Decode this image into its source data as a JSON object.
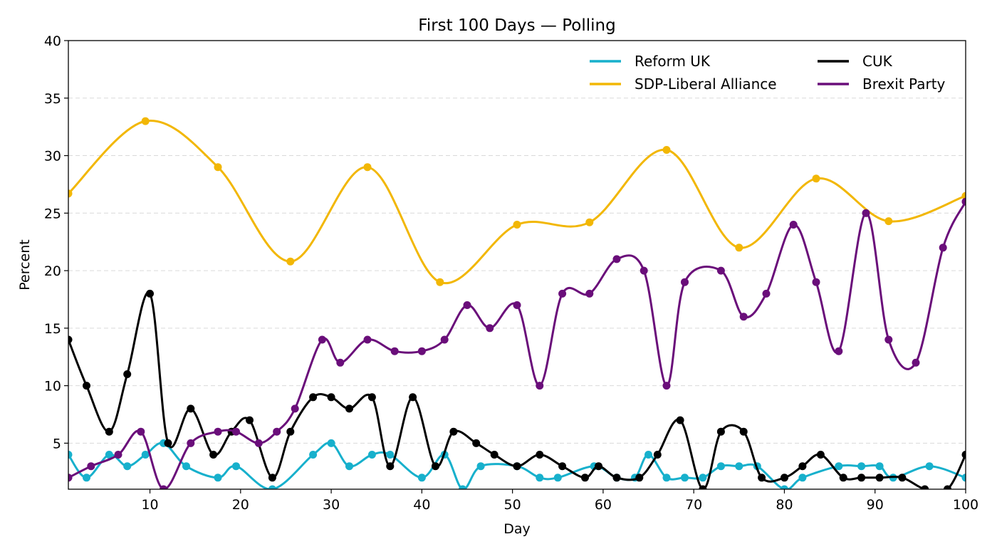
{
  "chart_data": {
    "type": "line",
    "title": "First 100 Days — Polling",
    "xlabel": "Day",
    "ylabel": "Percent",
    "xlim": [
      1,
      100
    ],
    "ylim": [
      1,
      40
    ],
    "xticks": [
      10,
      20,
      30,
      40,
      50,
      60,
      70,
      80,
      90,
      100
    ],
    "yticks": [
      5,
      10,
      15,
      20,
      25,
      30,
      35,
      40
    ],
    "grid": "y-dashed",
    "legend": {
      "placement": "top-right",
      "columns": 2
    },
    "series": [
      {
        "name": "Reform UK",
        "color": "#17b0cc",
        "x": [
          1,
          3,
          5.5,
          7.5,
          9.5,
          11.5,
          14,
          17.5,
          19.5,
          23.5,
          28,
          30,
          32,
          34.5,
          36.5,
          40,
          42.5,
          44.5,
          46.5,
          50.5,
          53,
          55,
          59,
          61.5,
          63.5,
          65,
          67,
          69,
          71,
          73,
          75,
          77,
          80,
          82,
          86,
          88.5,
          90.5,
          92,
          96,
          100
        ],
        "y": [
          4,
          2,
          4,
          3,
          4,
          5,
          3,
          2,
          3,
          1,
          4,
          5,
          3,
          4,
          4,
          2,
          4,
          1,
          3,
          3,
          2,
          2,
          3,
          2,
          2,
          4,
          2,
          2,
          2,
          3,
          3,
          3,
          1,
          2,
          3,
          3,
          3,
          2,
          3,
          2
        ]
      },
      {
        "name": "SDP-Liberal Alliance",
        "color": "#f2b705",
        "x": [
          1,
          9.5,
          17.5,
          25.5,
          34,
          42,
          50.5,
          58.5,
          67,
          75,
          83.5,
          91.5,
          100
        ],
        "y": [
          26.7,
          33,
          29,
          20.8,
          29,
          19,
          24,
          24.2,
          30.5,
          22,
          28,
          24.3,
          26.5
        ]
      },
      {
        "name": "CUK",
        "color": "#000000",
        "x": [
          1,
          3,
          5.5,
          7.5,
          10,
          12,
          14.5,
          17,
          19,
          21,
          23.5,
          25.5,
          28,
          30,
          32,
          34.5,
          36.5,
          39,
          41.5,
          43.5,
          46,
          48,
          50.5,
          53,
          55.5,
          58,
          59.5,
          61.5,
          64,
          66,
          68.5,
          71,
          73,
          75.5,
          77.5,
          80,
          82,
          84,
          86.5,
          88.5,
          90.5,
          93,
          95.5,
          98,
          100
        ],
        "y": [
          14,
          10,
          6,
          11,
          18,
          5,
          8,
          4,
          6,
          7,
          2,
          6,
          9,
          9,
          8,
          9,
          3,
          9,
          3,
          6,
          5,
          4,
          3,
          4,
          3,
          2,
          3,
          2,
          2,
          4,
          7,
          1,
          6,
          6,
          2,
          2,
          3,
          4,
          2,
          2,
          2,
          2,
          1,
          1,
          4
        ]
      },
      {
        "name": "Brexit Party",
        "color": "#6a0e7a",
        "x": [
          1,
          3.5,
          6.5,
          9,
          11.5,
          14.5,
          17.5,
          19.5,
          22,
          24,
          26,
          29,
          31,
          34,
          37,
          40,
          42.5,
          45,
          47.5,
          50.5,
          53,
          55.5,
          58.5,
          61.5,
          64.5,
          67,
          69,
          73,
          75.5,
          78,
          81,
          83.5,
          86,
          89,
          91.5,
          94.5,
          97.5,
          100
        ],
        "y": [
          2,
          3,
          4,
          6,
          1,
          5,
          6,
          6,
          5,
          6,
          8,
          14,
          12,
          14,
          13,
          13,
          14,
          17,
          15,
          17,
          10,
          18,
          18,
          21,
          20,
          10,
          19,
          20,
          16,
          18,
          24,
          19,
          13,
          25,
          14,
          12,
          22,
          26
        ]
      }
    ]
  }
}
